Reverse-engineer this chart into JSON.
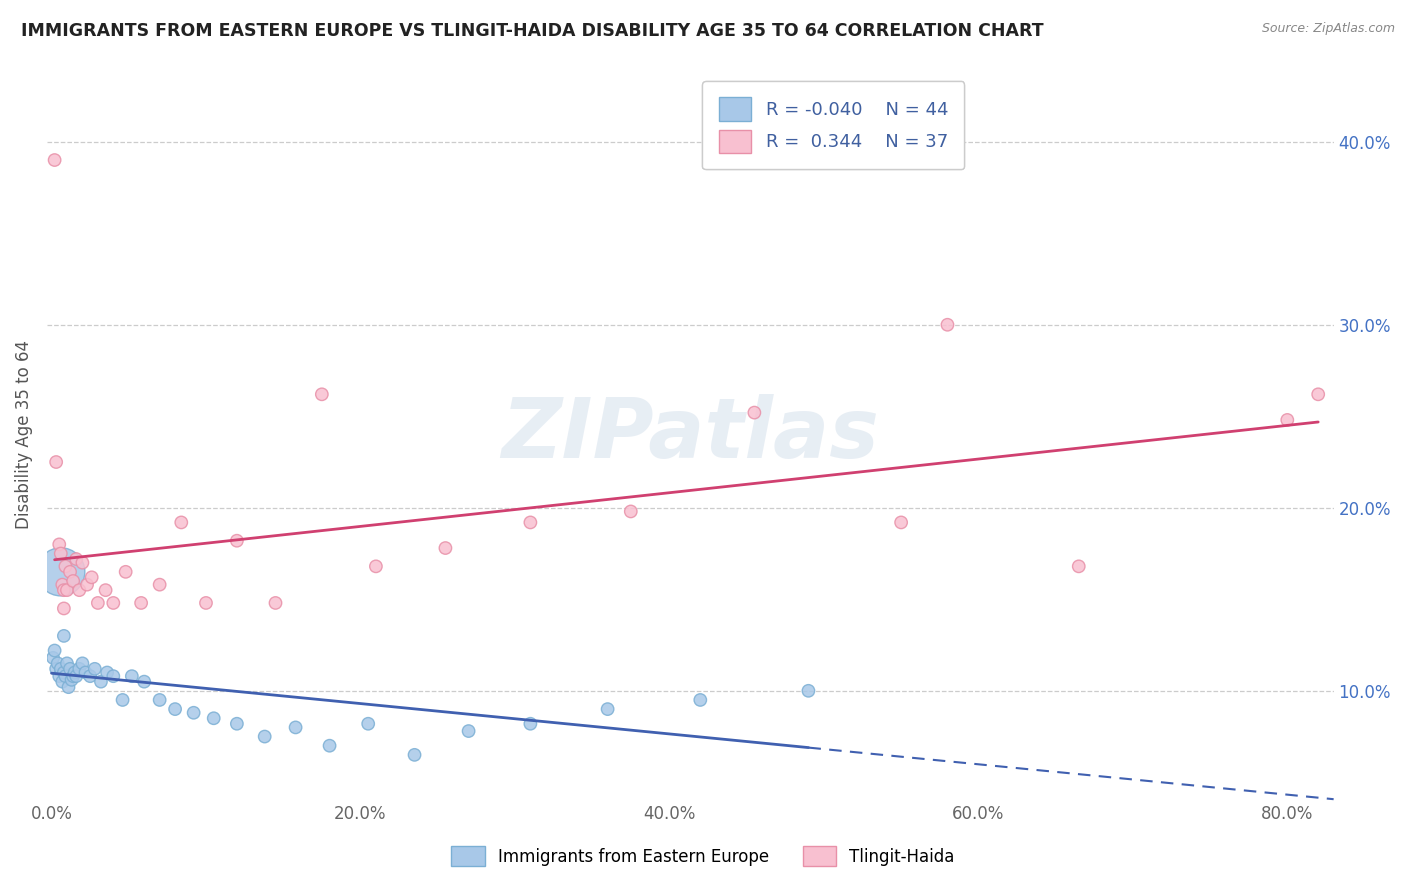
{
  "title": "IMMIGRANTS FROM EASTERN EUROPE VS TLINGIT-HAIDA DISABILITY AGE 35 TO 64 CORRELATION CHART",
  "source": "Source: ZipAtlas.com",
  "ylabel": "Disability Age 35 to 64",
  "xlim": [
    -0.003,
    0.83
  ],
  "ylim": [
    0.04,
    0.44
  ],
  "xticks": [
    0.0,
    0.2,
    0.4,
    0.6,
    0.8
  ],
  "xtick_labels": [
    "0.0%",
    "20.0%",
    "40.0%",
    "60.0%",
    "80.0%"
  ],
  "yticks": [
    0.1,
    0.2,
    0.3,
    0.4
  ],
  "ytick_labels": [
    "10.0%",
    "20.0%",
    "30.0%",
    "40.0%"
  ],
  "blue_R": -0.04,
  "blue_N": 44,
  "pink_R": 0.344,
  "pink_N": 37,
  "blue_fill": "#A8C8E8",
  "blue_edge": "#7BAFD4",
  "pink_fill": "#F8C0D0",
  "pink_edge": "#E890A8",
  "blue_line_color": "#4060B0",
  "pink_line_color": "#D04070",
  "watermark": "ZIPatlas",
  "legend_label_blue": "Immigrants from Eastern Europe",
  "legend_label_pink": "Tlingit-Haida",
  "blue_x": [
    0.001,
    0.002,
    0.003,
    0.004,
    0.005,
    0.006,
    0.007,
    0.008,
    0.009,
    0.01,
    0.011,
    0.012,
    0.013,
    0.014,
    0.015,
    0.016,
    0.018,
    0.02,
    0.022,
    0.025,
    0.028,
    0.032,
    0.036,
    0.04,
    0.046,
    0.052,
    0.06,
    0.07,
    0.08,
    0.092,
    0.105,
    0.12,
    0.138,
    0.158,
    0.18,
    0.205,
    0.235,
    0.27,
    0.31,
    0.36,
    0.42,
    0.49,
    0.006,
    0.008
  ],
  "blue_y": [
    0.118,
    0.122,
    0.112,
    0.115,
    0.108,
    0.112,
    0.105,
    0.11,
    0.108,
    0.115,
    0.102,
    0.112,
    0.106,
    0.108,
    0.11,
    0.108,
    0.112,
    0.115,
    0.11,
    0.108,
    0.112,
    0.105,
    0.11,
    0.108,
    0.095,
    0.108,
    0.105,
    0.095,
    0.09,
    0.088,
    0.085,
    0.082,
    0.075,
    0.08,
    0.07,
    0.082,
    0.065,
    0.078,
    0.082,
    0.09,
    0.095,
    0.1,
    0.165,
    0.13
  ],
  "blue_sizes": [
    80,
    80,
    80,
    80,
    80,
    80,
    80,
    80,
    80,
    80,
    80,
    80,
    80,
    80,
    80,
    80,
    80,
    80,
    80,
    80,
    80,
    80,
    80,
    80,
    80,
    80,
    80,
    80,
    80,
    80,
    80,
    80,
    80,
    80,
    80,
    80,
    80,
    80,
    80,
    80,
    80,
    80,
    1200,
    80
  ],
  "pink_x": [
    0.002,
    0.003,
    0.005,
    0.006,
    0.007,
    0.008,
    0.009,
    0.01,
    0.012,
    0.014,
    0.016,
    0.018,
    0.02,
    0.023,
    0.026,
    0.03,
    0.035,
    0.04,
    0.048,
    0.058,
    0.07,
    0.084,
    0.1,
    0.12,
    0.145,
    0.175,
    0.21,
    0.255,
    0.31,
    0.375,
    0.455,
    0.55,
    0.665,
    0.8,
    0.58,
    0.82,
    0.008
  ],
  "pink_y": [
    0.39,
    0.225,
    0.18,
    0.175,
    0.158,
    0.155,
    0.168,
    0.155,
    0.165,
    0.16,
    0.172,
    0.155,
    0.17,
    0.158,
    0.162,
    0.148,
    0.155,
    0.148,
    0.165,
    0.148,
    0.158,
    0.192,
    0.148,
    0.182,
    0.148,
    0.262,
    0.168,
    0.178,
    0.192,
    0.198,
    0.252,
    0.192,
    0.168,
    0.248,
    0.3,
    0.262,
    0.145
  ],
  "pink_sizes": [
    80,
    80,
    80,
    80,
    80,
    80,
    80,
    80,
    80,
    80,
    80,
    80,
    80,
    80,
    80,
    80,
    80,
    80,
    80,
    80,
    80,
    80,
    80,
    80,
    80,
    80,
    80,
    80,
    80,
    80,
    80,
    80,
    80,
    80,
    80,
    80,
    80
  ]
}
